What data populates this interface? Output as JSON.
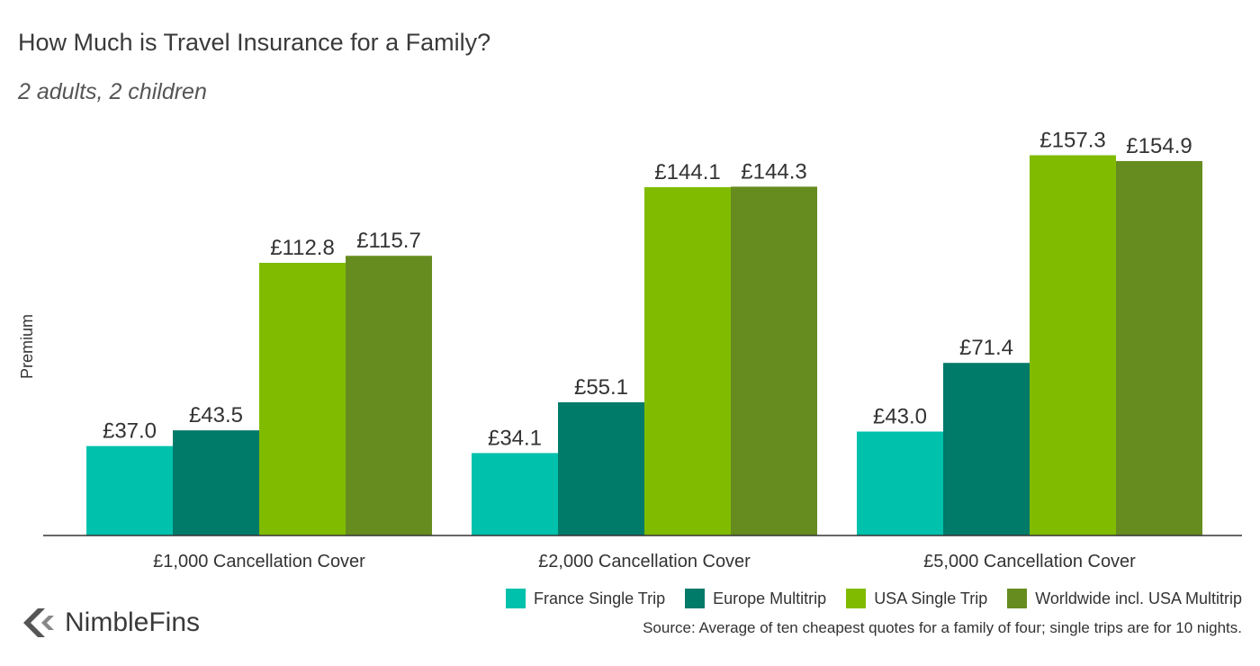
{
  "header": {
    "title": "How Much is Travel Insurance for a Family?",
    "subtitle": "2 adults, 2 children"
  },
  "brand": {
    "name": "NimbleFins",
    "icon": "nimblefins-logo-icon"
  },
  "source": "Source: Average of ten cheapest quotes for a family of four; single trips are for 10 nights.",
  "chart_data": {
    "type": "bar",
    "title": "How Much is Travel Insurance for a Family?",
    "subtitle": "2 adults, 2 children",
    "xlabel": "",
    "ylabel": "Premium",
    "ylim": [
      0,
      170
    ],
    "grid": false,
    "legend_position": "bottom-right",
    "categories": [
      "£1,000 Cancellation Cover",
      "£2,000 Cancellation Cover",
      "£5,000 Cancellation Cover"
    ],
    "series": [
      {
        "name": "France Single Trip",
        "color": "#00C1AC",
        "values": [
          37.0,
          34.1,
          43.0
        ],
        "labels": [
          "£37.0",
          "£34.1",
          "£43.0"
        ]
      },
      {
        "name": "Europe Multitrip",
        "color": "#007A69",
        "values": [
          43.5,
          55.1,
          71.4
        ],
        "labels": [
          "£43.5",
          "£55.1",
          "£71.4"
        ]
      },
      {
        "name": "USA Single Trip",
        "color": "#80BB00",
        "values": [
          112.8,
          144.1,
          157.3
        ],
        "labels": [
          "£112.8",
          "£144.1",
          "£157.3"
        ]
      },
      {
        "name": "Worldwide incl. USA Multitrip",
        "color": "#668C1F",
        "values": [
          115.7,
          144.3,
          154.9
        ],
        "labels": [
          "£115.7",
          "£144.3",
          "£154.9"
        ]
      }
    ]
  }
}
